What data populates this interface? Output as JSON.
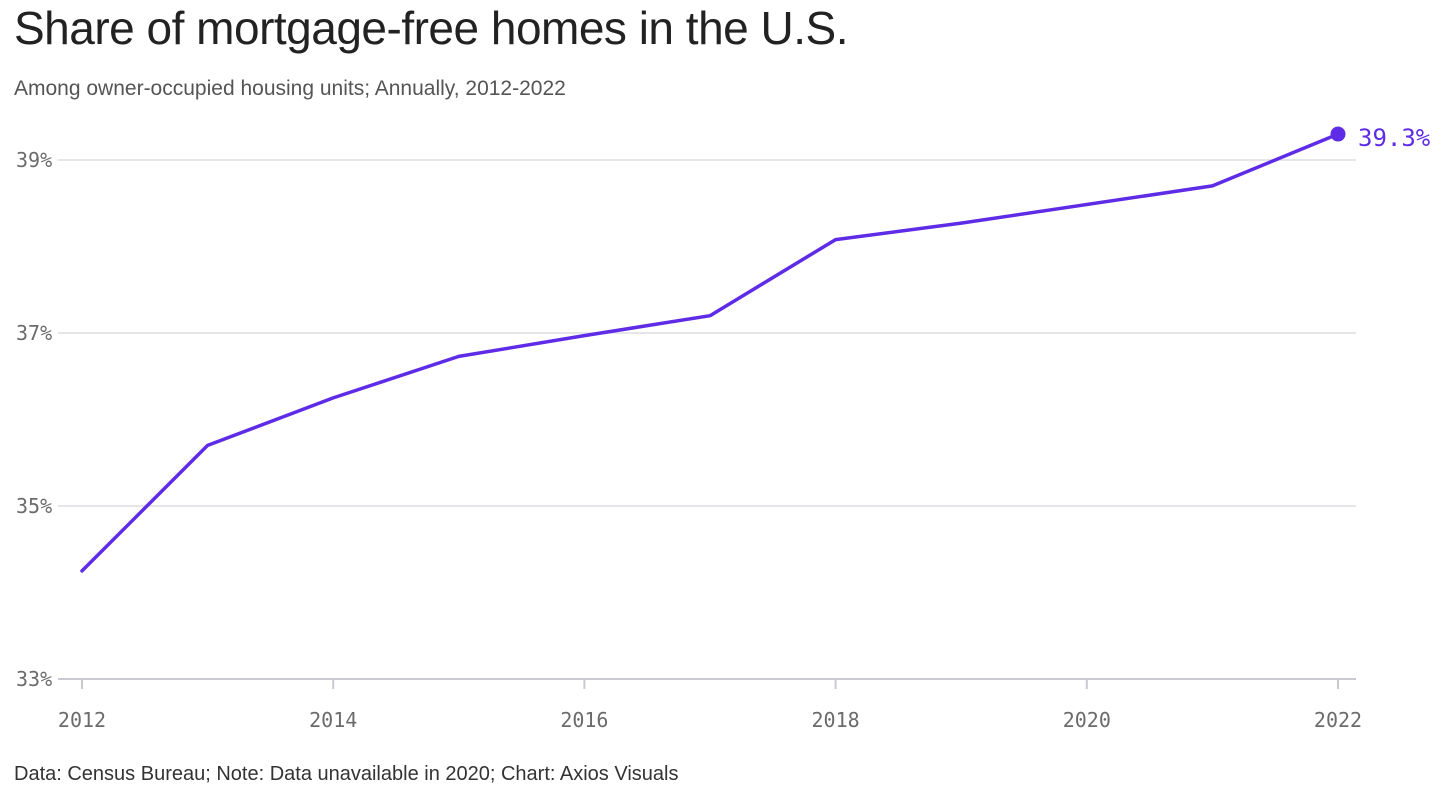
{
  "header": {
    "title": "Share of mortgage-free homes in the U.S.",
    "subtitle": "Among owner-occupied housing units; Annually, 2012-2022"
  },
  "footer": {
    "source": "Data: Census Bureau; Note: Data unavailable in 2020; Chart: Axios Visuals"
  },
  "colors": {
    "line": "#5e2ce6",
    "grid": "#dddde3",
    "axis": "#c9c9d1",
    "tick_text": "#6b6b6b"
  },
  "chart_data": {
    "type": "line",
    "title": "Share of mortgage-free homes in the U.S.",
    "subtitle": "Among owner-occupied housing units; Annually, 2012-2022",
    "xlabel": "",
    "ylabel": "",
    "x_ticks": [
      "2012",
      "2014",
      "2016",
      "2018",
      "2020",
      "2022"
    ],
    "y_ticks": [
      "33%",
      "35%",
      "37%",
      "39%"
    ],
    "xlim": [
      2012,
      2022
    ],
    "ylim": [
      33,
      39.5
    ],
    "grid": true,
    "legend": "none",
    "series": [
      {
        "x": [
          2012,
          2013,
          2014,
          2015,
          2016,
          2017,
          2018,
          2019,
          2021,
          2022
        ],
        "values": [
          34.25,
          35.7,
          36.25,
          36.73,
          36.97,
          37.2,
          38.08,
          38.27,
          38.7,
          39.3
        ]
      }
    ],
    "annotations": [
      {
        "x": 2022,
        "y": 39.3,
        "text": "39.3%"
      }
    ]
  }
}
